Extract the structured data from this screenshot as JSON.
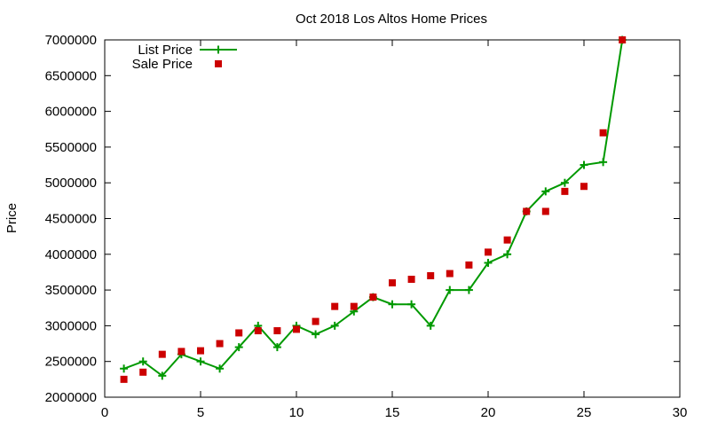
{
  "chart_data": {
    "type": "line",
    "title": "Oct 2018 Los Altos Home Prices",
    "xlabel": "",
    "ylabel": "Price",
    "xlim": [
      0,
      30
    ],
    "ylim": [
      2000000,
      7000000
    ],
    "x_ticks": [
      0,
      5,
      10,
      15,
      20,
      25,
      30
    ],
    "y_ticks": [
      2000000,
      2500000,
      3000000,
      3500000,
      4000000,
      4500000,
      5000000,
      5500000,
      6000000,
      6500000,
      7000000
    ],
    "grid": false,
    "legend_position": "top-left",
    "series": [
      {
        "name": "List Price",
        "style": "line-with-plus-markers",
        "color": "#009900",
        "x": [
          1,
          2,
          3,
          4,
          5,
          6,
          7,
          8,
          9,
          10,
          11,
          12,
          13,
          14,
          15,
          16,
          17,
          18,
          19,
          20,
          21,
          22,
          23,
          24,
          25,
          26,
          27
        ],
        "values": [
          2400000,
          2500000,
          2300000,
          2600000,
          2500000,
          2400000,
          2700000,
          3000000,
          2700000,
          3000000,
          2880000,
          3000000,
          3200000,
          3400000,
          3300000,
          3300000,
          3000000,
          3500000,
          3500000,
          3880000,
          4000000,
          4600000,
          4880000,
          5000000,
          5250000,
          5290000,
          7000000
        ]
      },
      {
        "name": "Sale Price",
        "style": "square-markers",
        "color": "#cc0000",
        "x": [
          1,
          2,
          3,
          4,
          5,
          6,
          7,
          8,
          9,
          10,
          11,
          12,
          13,
          14,
          15,
          16,
          17,
          18,
          19,
          20,
          21,
          22,
          23,
          24,
          25,
          26,
          27
        ],
        "values": [
          2250000,
          2350000,
          2600000,
          2640000,
          2650000,
          2750000,
          2900000,
          2930000,
          2930000,
          2950000,
          3060000,
          3270000,
          3270000,
          3400000,
          3600000,
          3650000,
          3700000,
          3730000,
          3850000,
          4030000,
          4200000,
          4600000,
          4600000,
          4880000,
          4950000,
          5700000,
          7000000
        ]
      }
    ]
  }
}
